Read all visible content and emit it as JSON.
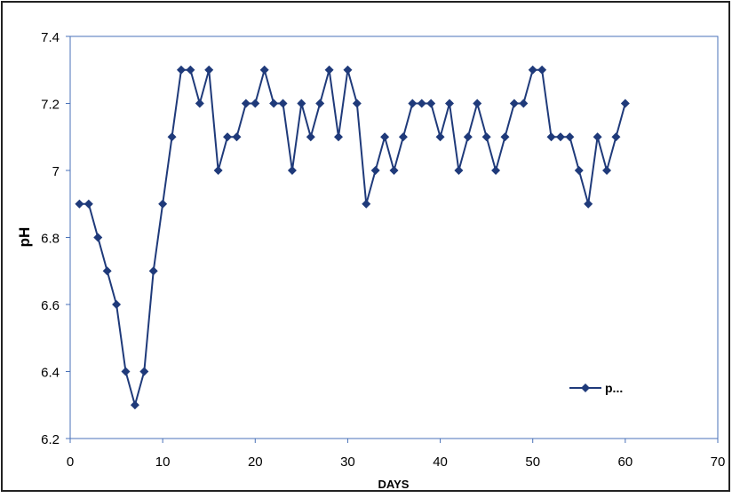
{
  "chart_data": {
    "type": "line",
    "title": "",
    "xlabel": "DAYS",
    "ylabel": "pH",
    "xlim": [
      0,
      70
    ],
    "ylim": [
      6.2,
      7.4
    ],
    "x_ticks": [
      "0",
      "10",
      "20",
      "30",
      "40",
      "50",
      "60",
      "70"
    ],
    "y_ticks": [
      "6.2",
      "6.4",
      "6.6",
      "6.8",
      "7",
      "7.2",
      "7.4"
    ],
    "grid": false,
    "legend_position": "bottom-right",
    "line_color": "#1f3a7a",
    "series": [
      {
        "name": "p...",
        "x": [
          1,
          2,
          3,
          4,
          5,
          6,
          7,
          8,
          9,
          10,
          11,
          12,
          13,
          14,
          15,
          16,
          17,
          18,
          19,
          20,
          21,
          22,
          23,
          24,
          25,
          26,
          27,
          28,
          29,
          30,
          31,
          32,
          33,
          34,
          35,
          36,
          37,
          38,
          39,
          40,
          41,
          42,
          43,
          44,
          45,
          46,
          47,
          48,
          49,
          50,
          51,
          52,
          53,
          54,
          55,
          56,
          57,
          58,
          59,
          60
        ],
        "values": [
          6.9,
          6.9,
          6.8,
          6.7,
          6.6,
          6.4,
          6.3,
          6.4,
          6.7,
          6.9,
          7.1,
          7.3,
          7.3,
          7.2,
          7.3,
          7.0,
          7.1,
          7.1,
          7.2,
          7.2,
          7.3,
          7.2,
          7.2,
          7.0,
          7.2,
          7.1,
          7.2,
          7.3,
          7.1,
          7.3,
          7.2,
          6.9,
          7.0,
          7.1,
          7.0,
          7.1,
          7.2,
          7.2,
          7.2,
          7.1,
          7.2,
          7.0,
          7.1,
          7.2,
          7.1,
          7.0,
          7.1,
          7.2,
          7.2,
          7.3,
          7.3,
          7.1,
          7.1,
          7.1,
          7.0,
          6.9,
          7.1,
          7.0,
          7.1,
          7.2
        ]
      }
    ]
  }
}
